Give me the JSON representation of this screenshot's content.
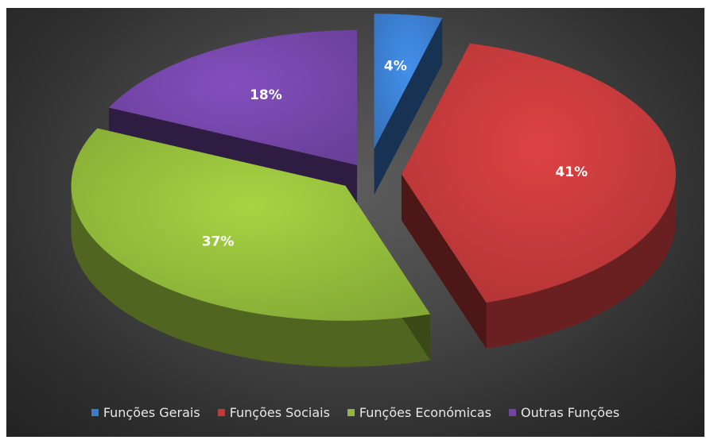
{
  "chart_data": {
    "type": "pie",
    "title": "",
    "categories": [
      "Funções Gerais",
      "Funções Sociais",
      "Funções Económicas",
      "Outras Funções"
    ],
    "values": [
      4,
      41,
      37,
      18
    ],
    "labels": [
      "4%",
      "41%",
      "37%",
      "18%"
    ],
    "colors": [
      "#3a7ccc",
      "#c0393a",
      "#90b83a",
      "#7245a5"
    ],
    "exploded": true,
    "style": "3d",
    "legend_position": "bottom"
  }
}
